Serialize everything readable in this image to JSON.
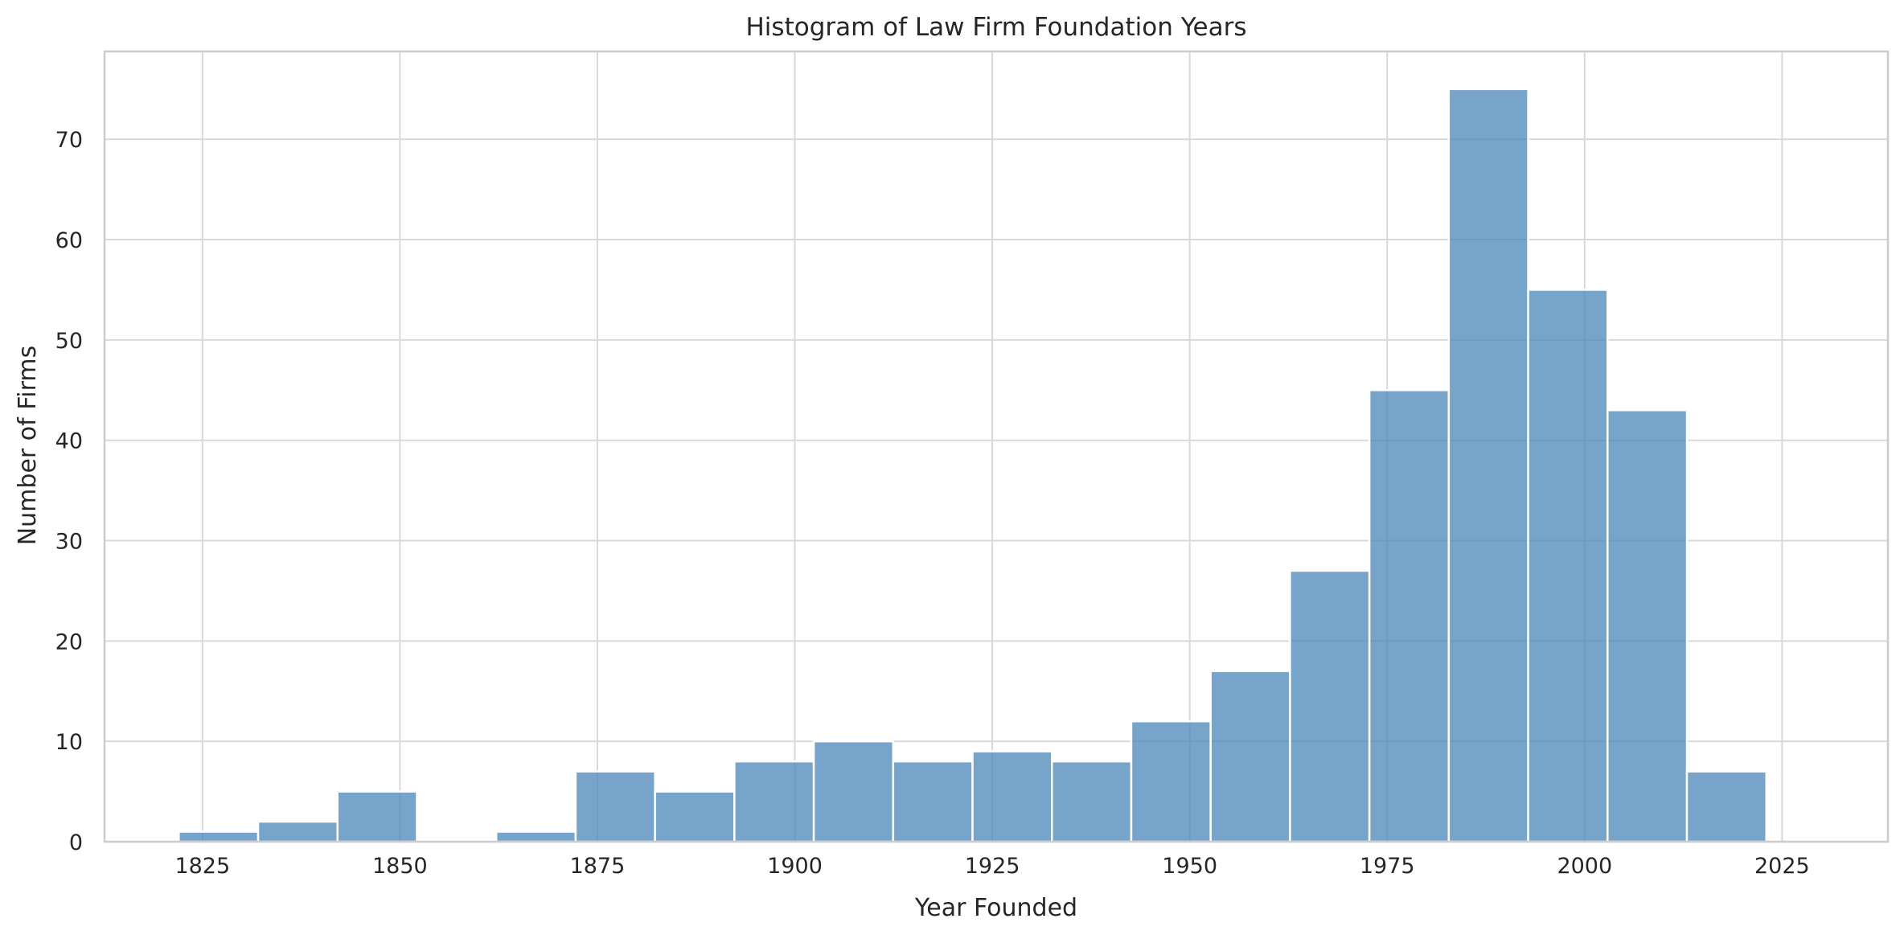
{
  "chart_data": {
    "type": "bar",
    "title": "Histogram of Law Firm Foundation Years",
    "xlabel": "Year Founded",
    "ylabel": "Number of Firms",
    "xlim": [
      1812.6,
      2038.4
    ],
    "ylim": [
      0,
      78.75
    ],
    "grid": true,
    "bin_width": 10.05,
    "x_ticks": [
      1825,
      1850,
      1875,
      1900,
      1925,
      1950,
      1975,
      2000,
      2025
    ],
    "y_ticks": [
      0,
      10,
      20,
      30,
      40,
      50,
      60,
      70
    ],
    "x_tick_labels": [
      "1825",
      "1850",
      "1875",
      "1900",
      "1925",
      "1950",
      "1975",
      "2000",
      "2025"
    ],
    "y_tick_labels": [
      "0",
      "10",
      "20",
      "30",
      "40",
      "50",
      "60",
      "70"
    ],
    "bin_edges": [
      1822.0,
      1832.05,
      1842.1,
      1852.15,
      1862.2,
      1872.25,
      1882.3,
      1892.35,
      1902.4,
      1912.45,
      1922.5,
      1932.55,
      1942.6,
      1952.65,
      1962.7,
      1972.75,
      1982.8,
      1992.85,
      2002.9,
      2012.95,
      2023.0
    ],
    "counts": [
      1,
      2,
      5,
      0,
      1,
      7,
      5,
      8,
      10,
      8,
      9,
      8,
      12,
      17,
      27,
      45,
      75,
      55,
      43,
      7
    ],
    "bar_color": "#4a86b9",
    "bar_opacity": 0.75
  },
  "colors": {
    "grid": "#d9d9d9",
    "spine": "#cccccc",
    "background": "#ffffff"
  }
}
